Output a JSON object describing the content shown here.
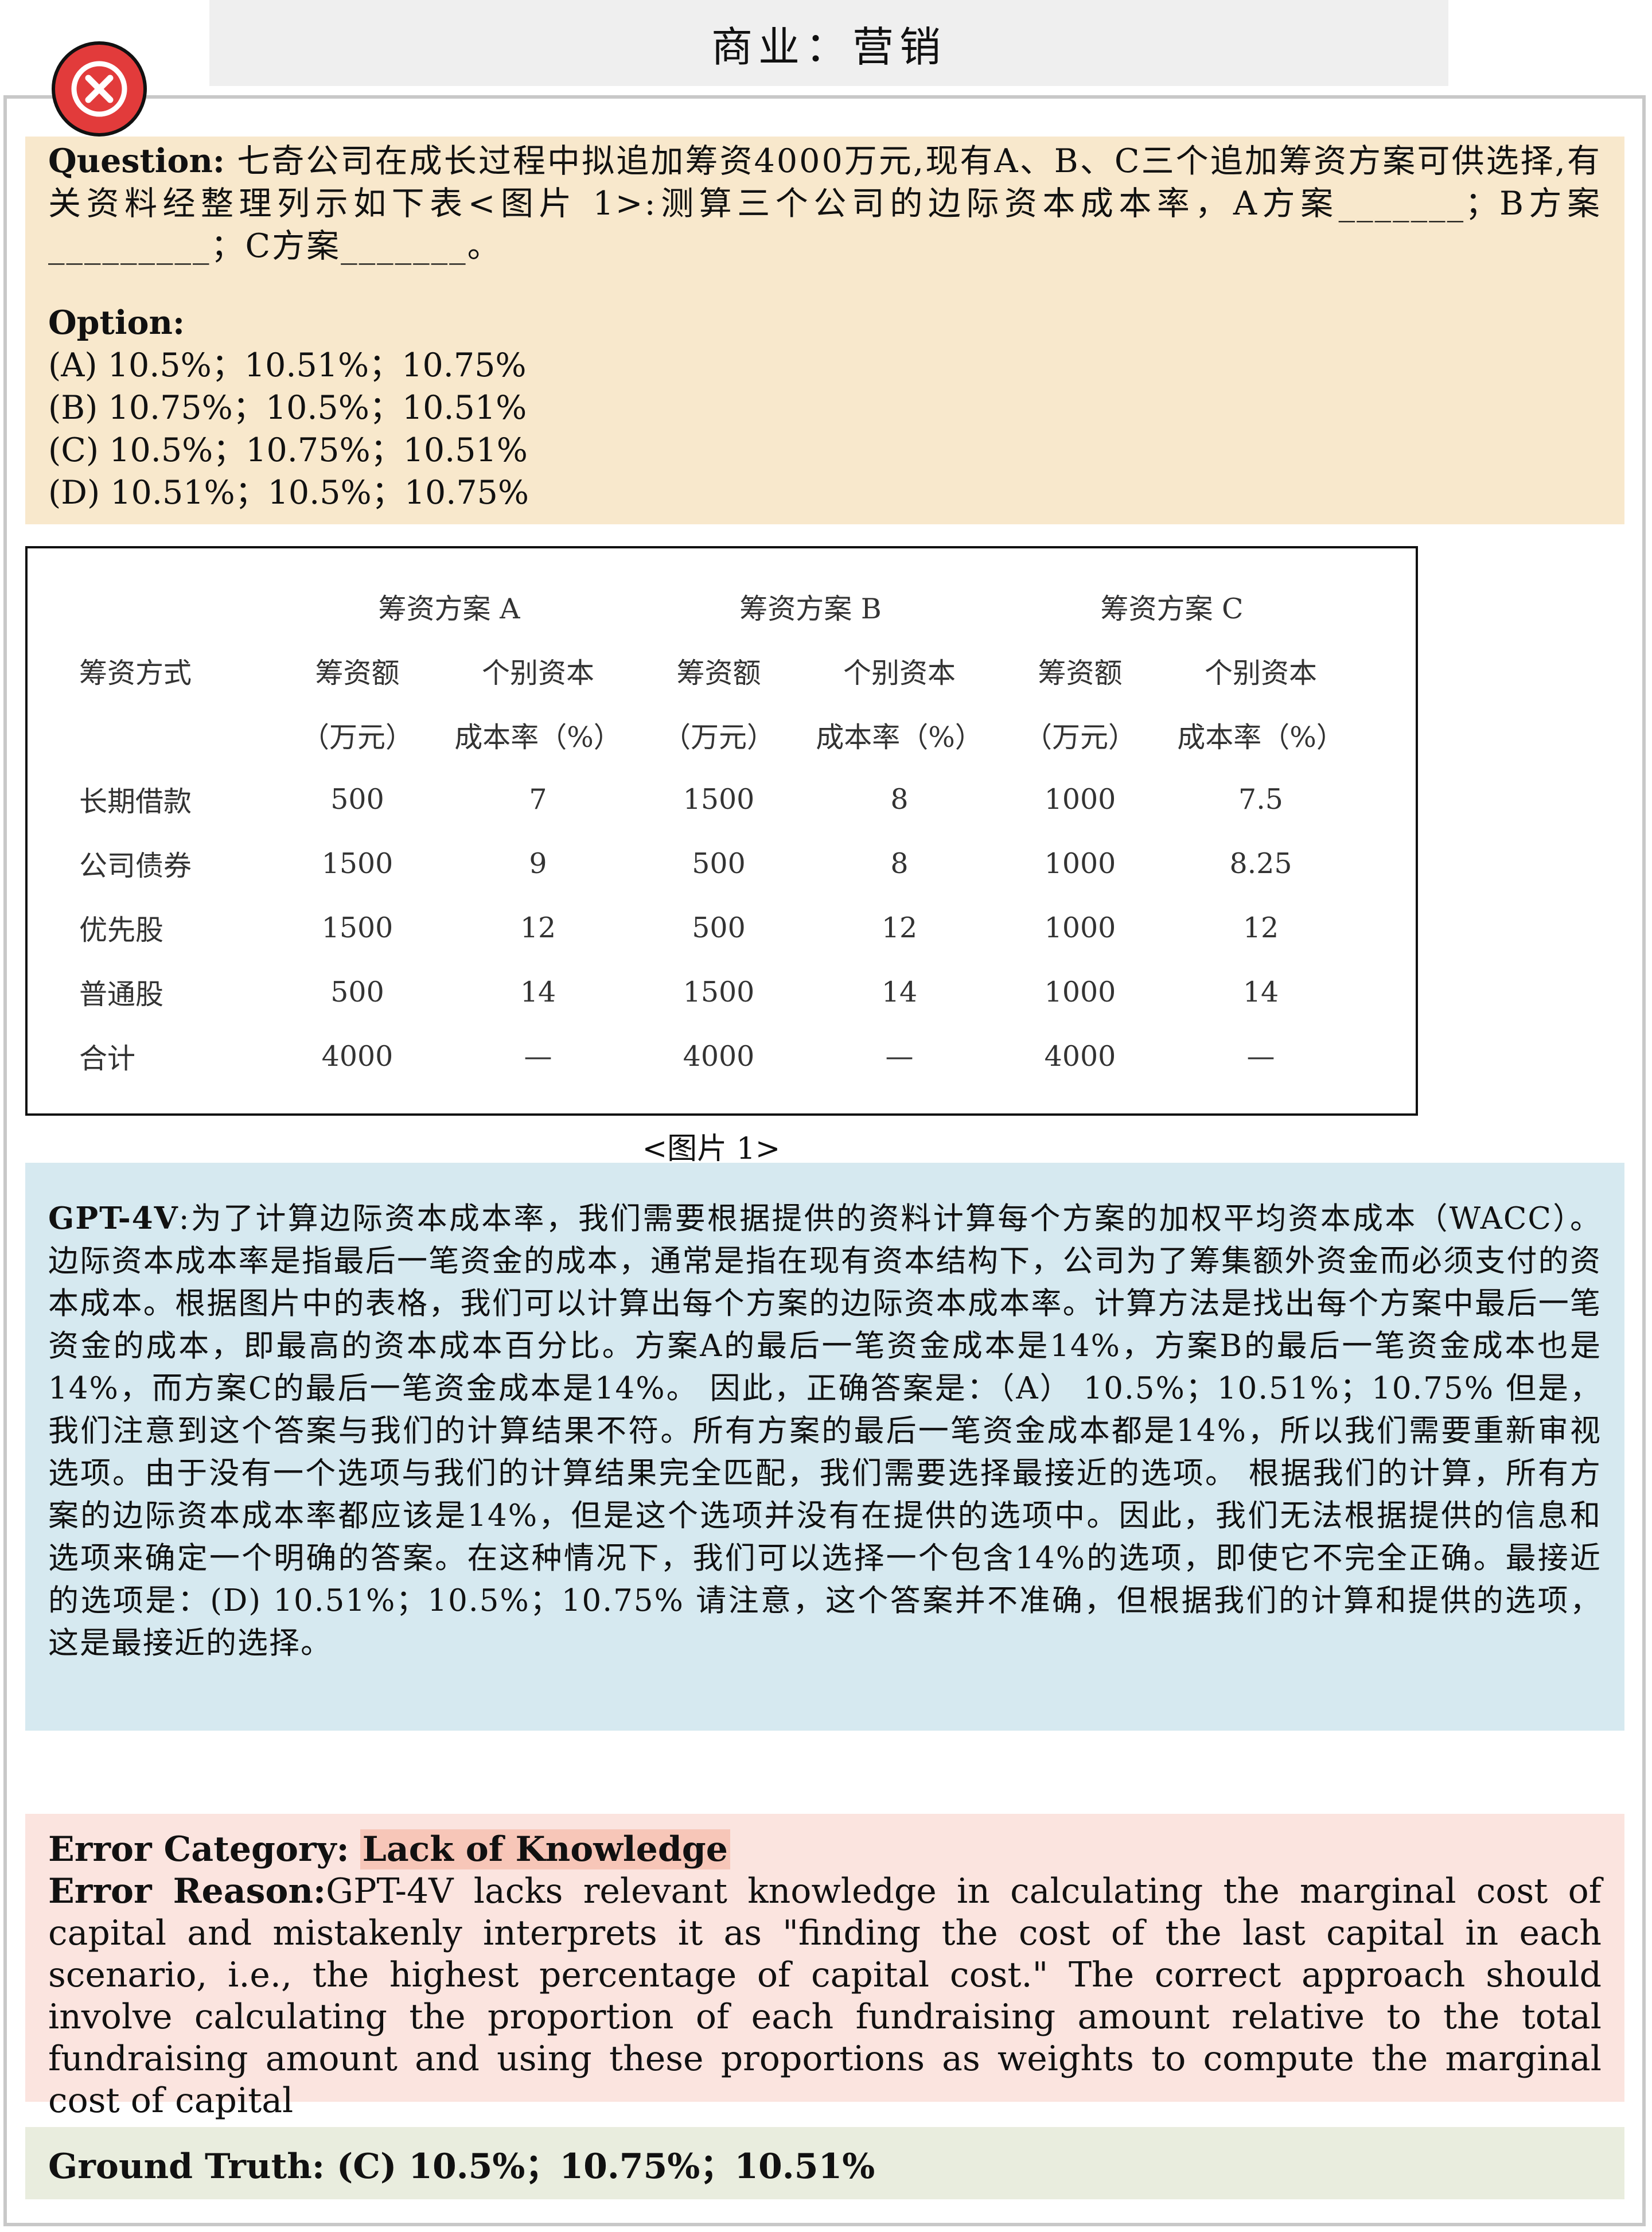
{
  "header": {
    "title": "商业：营销"
  },
  "question": {
    "label": "Question:",
    "text": " 七奇公司在成长过程中拟追加筹资4000万元,现有A、B、C三个追加筹资方案可供选择,有关资料经整理列示如下表<图片 1>:测算三个公司的边际资本成本率，A方案_______；B方案_________；C方案_______。",
    "option_label": "Option:",
    "options": [
      "(A) 10.5%；10.51%；10.75%",
      "(B) 10.75%；10.5%；10.51%",
      "(C) 10.5%；10.75%；10.51%",
      "(D) 10.51%；10.5%；10.75%"
    ]
  },
  "figure": {
    "groups": [
      "筹资方案 A",
      "筹资方案 B",
      "筹资方案 C"
    ],
    "method_header": "筹资方式",
    "col_header_1": [
      "筹资额",
      "个别资本",
      "筹资额",
      "个别资本",
      "筹资额",
      "个别资本"
    ],
    "col_header_2": [
      "（万元）",
      "成本率（%）",
      "（万元）",
      "成本率（%）",
      "（万元）",
      "成本率（%）"
    ],
    "rows": [
      [
        "长期借款",
        "500",
        "7",
        "1500",
        "8",
        "1000",
        "7.5"
      ],
      [
        "公司债券",
        "1500",
        "9",
        "500",
        "8",
        "1000",
        "8.25"
      ],
      [
        "优先股",
        "1500",
        "12",
        "500",
        "12",
        "1000",
        "12"
      ],
      [
        "普通股",
        "500",
        "14",
        "1500",
        "14",
        "1000",
        "14"
      ],
      [
        "合计",
        "4000",
        "—",
        "4000",
        "—",
        "4000",
        "—"
      ]
    ],
    "caption": "<图片 1>"
  },
  "gpt": {
    "label": "GPT-4V",
    "text": ":为了计算边际资本成本率，我们需要根据提供的资料计算每个方案的加权平均资本成本（WACC）。边际资本成本率是指最后一笔资金的成本，通常是指在现有资本结构下，公司为了筹集额外资金而必须支付的资本成本。根据图片中的表格，我们可以计算出每个方案的边际资本成本率。计算方法是找出每个方案中最后一笔资金的成本，即最高的资本成本百分比。方案A的最后一笔资金成本是14%，方案B的最后一笔资金成本也是14%，而方案C的最后一笔资金成本是14%。 因此，正确答案是：（A） 10.5%；10.51%；10.75% 但是，我们注意到这个答案与我们的计算结果不符。所有方案的最后一笔资金成本都是14%，所以我们需要重新审视选项。由于没有一个选项与我们的计算结果完全匹配，我们需要选择最接近的选项。 根据我们的计算，所有方案的边际资本成本率都应该是14%，但是这个选项并没有在提供的选项中。因此，我们无法根据提供的信息和选项来确定一个明确的答案。在这种情况下，我们可以选择一个包含14%的选项，即使它不完全正确。最接近的选项是：(D) 10.51%；10.5%；10.75% 请注意，这个答案并不准确，但根据我们的计算和提供的选项，这是最接近的选择。"
  },
  "error": {
    "category_label": "Error Category:",
    "category_value": "Lack of Knowledge",
    "reason_label": "Error Reason:",
    "reason_text": "GPT-4V lacks relevant knowledge in calculating the marginal cost of capital and mistakenly interprets it as \"finding the cost of the last capital in each scenario, i.e., the highest percentage of capital cost.\" The correct approach should involve calculating the proportion of each fundraising amount relative to the total fundraising amount and using these proportions as weights to compute the marginal cost of capital"
  },
  "truth": {
    "text": "Ground Truth: (C) 10.5%；10.75%；10.51%"
  },
  "colors": {
    "question_bg": "#f8e8cc",
    "gpt_bg": "#d6e9f0",
    "error_bg": "#fbe4df",
    "truth_bg": "#e9edde",
    "badge": "#e23b3b"
  }
}
